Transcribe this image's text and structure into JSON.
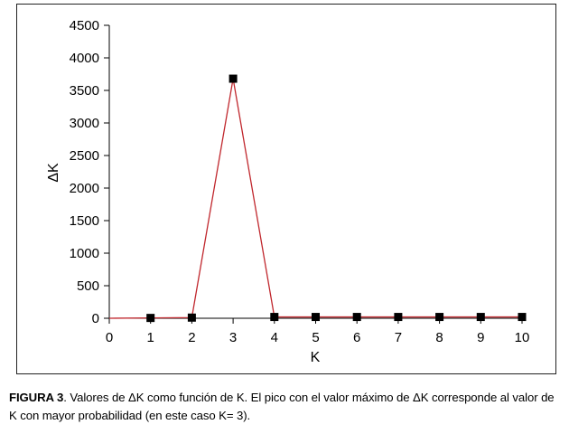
{
  "chart_data": {
    "type": "line",
    "x": [
      0,
      1,
      2,
      3,
      4,
      5,
      6,
      7,
      8,
      9,
      10
    ],
    "series": [
      {
        "values": [
          null,
          5,
          10,
          3680,
          20,
          20,
          20,
          20,
          20,
          20,
          20
        ]
      }
    ],
    "line_x": [
      0,
      1,
      2,
      3,
      4,
      5,
      6,
      7,
      8,
      9,
      10
    ],
    "line_y": [
      0,
      5,
      10,
      3680,
      20,
      20,
      20,
      20,
      20,
      20,
      20
    ],
    "xlabel": "K",
    "ylabel": "ΔK",
    "xlim": [
      0,
      10
    ],
    "ylim": [
      0,
      4500
    ],
    "xticks": [
      "0",
      "1",
      "2",
      "3",
      "4",
      "5",
      "6",
      "7",
      "8",
      "9",
      "10"
    ],
    "yticks": [
      "0",
      "500",
      "1000",
      "1500",
      "2000",
      "2500",
      "3000",
      "3500",
      "4000",
      "4500"
    ],
    "line_color": "#c0272d",
    "marker_color": "#000000",
    "grid": false
  },
  "caption": {
    "label": "FIGURA 3",
    "text": ". Valores de ΔK como función de K. El pico con el valor máximo de ΔK corresponde al valor de K con mayor probabilidad (en este caso K= 3)."
  }
}
